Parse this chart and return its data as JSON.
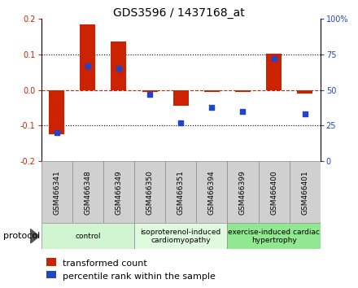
{
  "title": "GDS3596 / 1437168_at",
  "samples": [
    "GSM466341",
    "GSM466348",
    "GSM466349",
    "GSM466350",
    "GSM466351",
    "GSM466394",
    "GSM466399",
    "GSM466400",
    "GSM466401"
  ],
  "transformed_count": [
    -0.125,
    0.185,
    0.135,
    -0.005,
    -0.045,
    -0.005,
    -0.005,
    0.101,
    -0.01
  ],
  "percentile_rank": [
    20,
    67,
    65,
    47,
    27,
    38,
    35,
    72,
    33
  ],
  "groups": [
    {
      "label": "control",
      "start": 0,
      "end": 3,
      "color": "#d0f5d0"
    },
    {
      "label": "isoproterenol-induced\ncardiomyopathy",
      "start": 3,
      "end": 6,
      "color": "#e0fae0"
    },
    {
      "label": "exercise-induced cardiac\nhypertrophy",
      "start": 6,
      "end": 9,
      "color": "#90e890"
    }
  ],
  "ylim_left": [
    -0.2,
    0.2
  ],
  "ylim_right": [
    0,
    100
  ],
  "yticks_left": [
    -0.2,
    -0.1,
    0.0,
    0.1,
    0.2
  ],
  "yticks_right": [
    0,
    25,
    50,
    75,
    100
  ],
  "bar_color": "#cc2200",
  "dot_color": "#2244cc",
  "zero_line_color": "#cc2200",
  "sample_box_color": "#d0d0d0",
  "title_fontsize": 10,
  "tick_fontsize": 7,
  "sample_fontsize": 6.5,
  "group_fontsize": 6.5,
  "legend_fontsize": 8,
  "protocol_label": "protocol"
}
